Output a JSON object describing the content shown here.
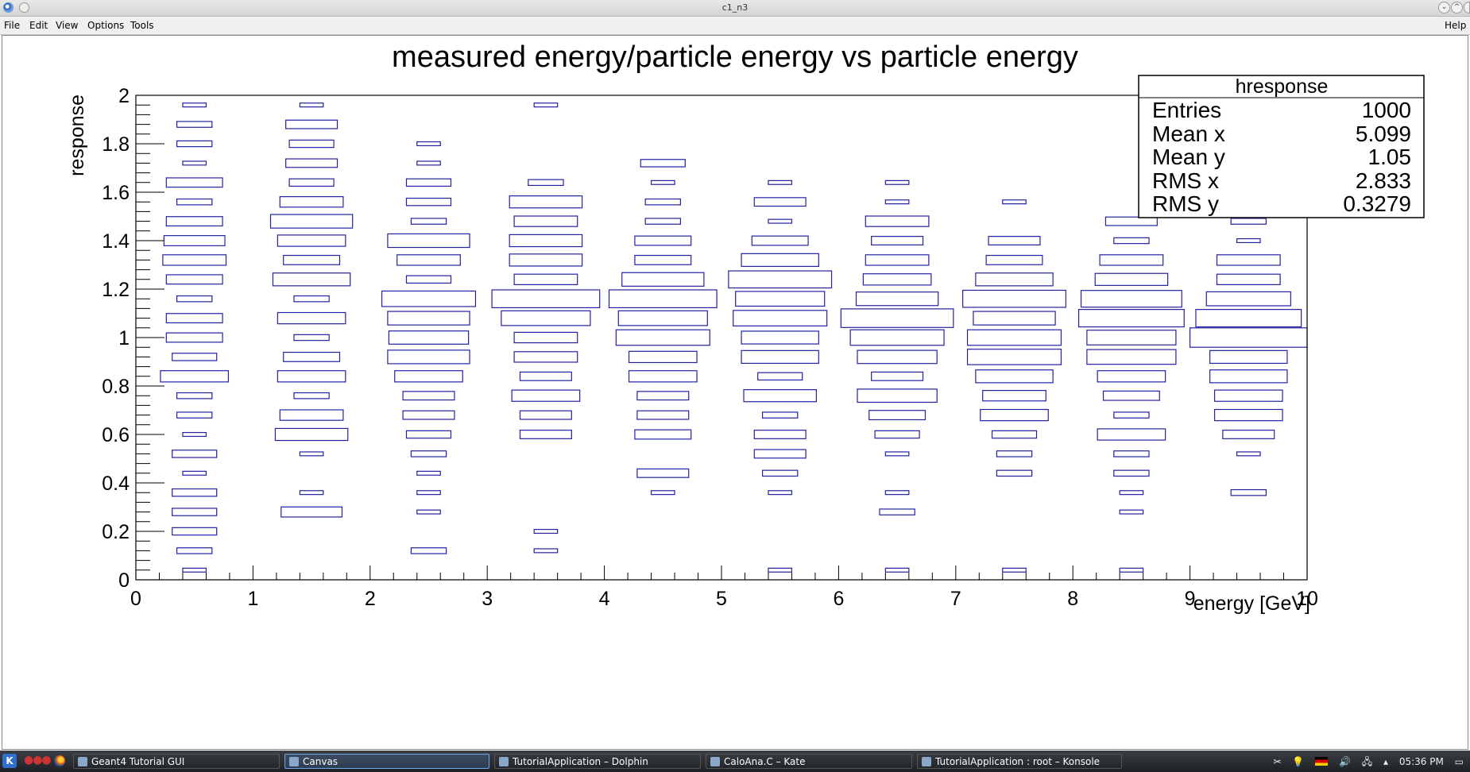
{
  "window": {
    "title": "c1_n3"
  },
  "menubar": {
    "items": [
      "File",
      "Edit",
      "View",
      "Options",
      "Tools"
    ],
    "help": "Help"
  },
  "stats_box": {
    "title": "hresponse",
    "rows": [
      {
        "label": "Entries",
        "value": "1000"
      },
      {
        "label": "Mean x",
        "value": "5.099"
      },
      {
        "label": "Mean y",
        "value": "1.05"
      },
      {
        "label": "RMS x",
        "value": "2.833"
      },
      {
        "label": "RMS y",
        "value": "0.3279"
      }
    ]
  },
  "chart_data": {
    "type": "heatmap",
    "style": "box",
    "title": "measured energy/particle energy vs particle energy",
    "xlabel": "energy [GeV]",
    "ylabel": "response",
    "xlim": [
      0,
      10
    ],
    "ylim": [
      0,
      2
    ],
    "x_ticks": [
      "0",
      "1",
      "2",
      "3",
      "4",
      "5",
      "6",
      "7",
      "8",
      "9",
      "10"
    ],
    "y_ticks": [
      "0",
      "0.2",
      "0.4",
      "0.6",
      "0.8",
      "1",
      "1.2",
      "1.4",
      "1.6",
      "1.8",
      "2"
    ],
    "bin_width_x": 1,
    "bin_width_y": 0.08,
    "box_color": "#2222a0",
    "note_values": "relative box size (fraction of max bin content)",
    "columns": [
      {
        "x": 0.5,
        "y_bins": [
          [
            1.96,
            0.2
          ],
          [
            1.88,
            0.3
          ],
          [
            1.8,
            0.3
          ],
          [
            1.72,
            0.2
          ],
          [
            1.64,
            0.48
          ],
          [
            1.56,
            0.3
          ],
          [
            1.48,
            0.48
          ],
          [
            1.4,
            0.52
          ],
          [
            1.32,
            0.54
          ],
          [
            1.24,
            0.48
          ],
          [
            1.16,
            0.3
          ],
          [
            1.08,
            0.48
          ],
          [
            1.0,
            0.48
          ],
          [
            0.92,
            0.38
          ],
          [
            0.84,
            0.58
          ],
          [
            0.76,
            0.3
          ],
          [
            0.68,
            0.3
          ],
          [
            0.6,
            0.2
          ],
          [
            0.52,
            0.38
          ],
          [
            0.44,
            0.2
          ],
          [
            0.36,
            0.38
          ],
          [
            0.28,
            0.38
          ],
          [
            0.2,
            0.38
          ],
          [
            0.12,
            0.3
          ],
          [
            0.04,
            0.2
          ]
        ]
      },
      {
        "x": 1.5,
        "y_bins": [
          [
            1.96,
            0.2
          ],
          [
            1.88,
            0.44
          ],
          [
            1.8,
            0.38
          ],
          [
            1.72,
            0.44
          ],
          [
            1.64,
            0.38
          ],
          [
            1.56,
            0.54
          ],
          [
            1.48,
            0.7
          ],
          [
            1.4,
            0.58
          ],
          [
            1.32,
            0.48
          ],
          [
            1.24,
            0.66
          ],
          [
            1.16,
            0.3
          ],
          [
            1.08,
            0.58
          ],
          [
            1.0,
            0.3
          ],
          [
            0.92,
            0.48
          ],
          [
            0.84,
            0.58
          ],
          [
            0.76,
            0.3
          ],
          [
            0.68,
            0.54
          ],
          [
            0.6,
            0.62
          ],
          [
            0.52,
            0.2
          ],
          [
            0.36,
            0.2
          ],
          [
            0.28,
            0.52
          ]
        ]
      },
      {
        "x": 2.5,
        "y_bins": [
          [
            1.8,
            0.2
          ],
          [
            1.72,
            0.2
          ],
          [
            1.64,
            0.38
          ],
          [
            1.56,
            0.38
          ],
          [
            1.48,
            0.3
          ],
          [
            1.4,
            0.7
          ],
          [
            1.32,
            0.54
          ],
          [
            1.24,
            0.38
          ],
          [
            1.16,
            0.8
          ],
          [
            1.08,
            0.7
          ],
          [
            1.0,
            0.68
          ],
          [
            0.92,
            0.7
          ],
          [
            0.84,
            0.58
          ],
          [
            0.76,
            0.44
          ],
          [
            0.68,
            0.44
          ],
          [
            0.6,
            0.38
          ],
          [
            0.52,
            0.3
          ],
          [
            0.44,
            0.2
          ],
          [
            0.36,
            0.2
          ],
          [
            0.28,
            0.2
          ],
          [
            0.12,
            0.3
          ]
        ]
      },
      {
        "x": 3.5,
        "y_bins": [
          [
            1.96,
            0.2
          ],
          [
            1.64,
            0.3
          ],
          [
            1.56,
            0.62
          ],
          [
            1.48,
            0.54
          ],
          [
            1.4,
            0.62
          ],
          [
            1.32,
            0.62
          ],
          [
            1.24,
            0.54
          ],
          [
            1.16,
            0.92
          ],
          [
            1.08,
            0.76
          ],
          [
            1.0,
            0.54
          ],
          [
            0.92,
            0.54
          ],
          [
            0.84,
            0.44
          ],
          [
            0.76,
            0.58
          ],
          [
            0.68,
            0.44
          ],
          [
            0.6,
            0.44
          ],
          [
            0.2,
            0.2
          ],
          [
            0.12,
            0.2
          ]
        ]
      },
      {
        "x": 4.5,
        "y_bins": [
          [
            1.72,
            0.38
          ],
          [
            1.64,
            0.2
          ],
          [
            1.56,
            0.3
          ],
          [
            1.48,
            0.3
          ],
          [
            1.4,
            0.48
          ],
          [
            1.32,
            0.48
          ],
          [
            1.24,
            0.7
          ],
          [
            1.16,
            0.92
          ],
          [
            1.08,
            0.76
          ],
          [
            1.0,
            0.8
          ],
          [
            0.92,
            0.58
          ],
          [
            0.84,
            0.58
          ],
          [
            0.76,
            0.44
          ],
          [
            0.68,
            0.44
          ],
          [
            0.6,
            0.48
          ],
          [
            0.44,
            0.44
          ],
          [
            0.36,
            0.2
          ]
        ]
      },
      {
        "x": 5.5,
        "y_bins": [
          [
            1.64,
            0.2
          ],
          [
            1.56,
            0.44
          ],
          [
            1.48,
            0.2
          ],
          [
            1.4,
            0.48
          ],
          [
            1.32,
            0.66
          ],
          [
            1.24,
            0.88
          ],
          [
            1.16,
            0.76
          ],
          [
            1.08,
            0.8
          ],
          [
            1.0,
            0.66
          ],
          [
            0.92,
            0.66
          ],
          [
            0.84,
            0.38
          ],
          [
            0.76,
            0.62
          ],
          [
            0.68,
            0.3
          ],
          [
            0.6,
            0.44
          ],
          [
            0.52,
            0.44
          ],
          [
            0.44,
            0.3
          ],
          [
            0.36,
            0.2
          ],
          [
            0.04,
            0.2
          ]
        ]
      },
      {
        "x": 6.5,
        "y_bins": [
          [
            1.64,
            0.2
          ],
          [
            1.56,
            0.2
          ],
          [
            1.48,
            0.54
          ],
          [
            1.4,
            0.44
          ],
          [
            1.32,
            0.54
          ],
          [
            1.24,
            0.58
          ],
          [
            1.16,
            0.7
          ],
          [
            1.08,
            0.96
          ],
          [
            1.0,
            0.8
          ],
          [
            0.92,
            0.68
          ],
          [
            0.84,
            0.44
          ],
          [
            0.76,
            0.68
          ],
          [
            0.68,
            0.48
          ],
          [
            0.6,
            0.38
          ],
          [
            0.52,
            0.2
          ],
          [
            0.36,
            0.2
          ],
          [
            0.28,
            0.3
          ],
          [
            0.04,
            0.2
          ]
        ]
      },
      {
        "x": 7.5,
        "y_bins": [
          [
            1.56,
            0.2
          ],
          [
            1.4,
            0.44
          ],
          [
            1.32,
            0.48
          ],
          [
            1.24,
            0.66
          ],
          [
            1.16,
            0.88
          ],
          [
            1.08,
            0.7
          ],
          [
            1.0,
            0.8
          ],
          [
            0.92,
            0.8
          ],
          [
            0.84,
            0.66
          ],
          [
            0.76,
            0.54
          ],
          [
            0.68,
            0.58
          ],
          [
            0.6,
            0.38
          ],
          [
            0.52,
            0.3
          ],
          [
            0.44,
            0.3
          ],
          [
            0.04,
            0.2
          ]
        ]
      },
      {
        "x": 8.5,
        "y_bins": [
          [
            1.48,
            0.44
          ],
          [
            1.4,
            0.3
          ],
          [
            1.32,
            0.54
          ],
          [
            1.24,
            0.62
          ],
          [
            1.16,
            0.86
          ],
          [
            1.08,
            0.9
          ],
          [
            1.0,
            0.76
          ],
          [
            0.92,
            0.76
          ],
          [
            0.84,
            0.58
          ],
          [
            0.76,
            0.48
          ],
          [
            0.68,
            0.3
          ],
          [
            0.6,
            0.58
          ],
          [
            0.52,
            0.3
          ],
          [
            0.44,
            0.3
          ],
          [
            0.36,
            0.2
          ],
          [
            0.28,
            0.2
          ],
          [
            0.04,
            0.2
          ]
        ]
      },
      {
        "x": 9.5,
        "y_bins": [
          [
            1.48,
            0.3
          ],
          [
            1.4,
            0.2
          ],
          [
            1.32,
            0.54
          ],
          [
            1.24,
            0.54
          ],
          [
            1.16,
            0.72
          ],
          [
            1.08,
            0.9
          ],
          [
            1.0,
            1.0
          ],
          [
            0.92,
            0.66
          ],
          [
            0.84,
            0.66
          ],
          [
            0.76,
            0.58
          ],
          [
            0.68,
            0.58
          ],
          [
            0.6,
            0.44
          ],
          [
            0.52,
            0.2
          ],
          [
            0.36,
            0.3
          ]
        ]
      }
    ]
  },
  "taskbar": {
    "tasks": [
      {
        "label": "Geant4 Tutorial GUI",
        "active": false
      },
      {
        "label": "Canvas",
        "active": true
      },
      {
        "label": "TutorialApplication – Dolphin",
        "active": false
      },
      {
        "label": "CaloAna.C – Kate",
        "active": false
      },
      {
        "label": "TutorialApplication : root – Konsole",
        "active": false
      }
    ],
    "clock": "05:36 PM"
  }
}
